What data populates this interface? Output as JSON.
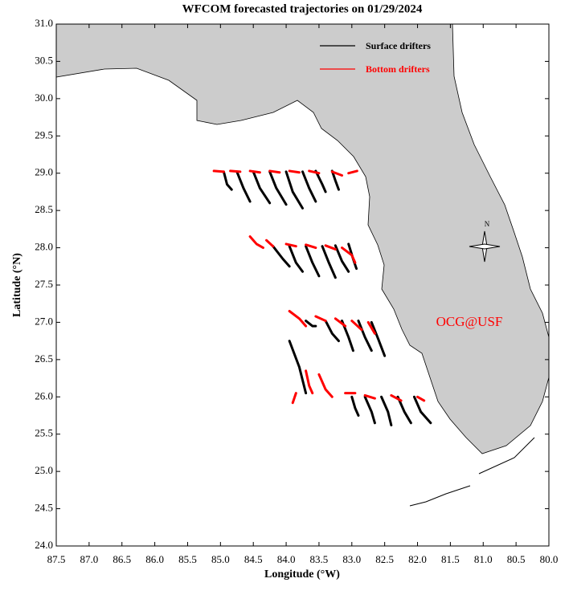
{
  "chart_data": {
    "type": "trajectory",
    "title": "WFCOM forecasted trajectories on 01/29/2024",
    "xlabel": "Longitude (°W)",
    "ylabel": "Latitude (°N)",
    "annotation": "OCG@USF",
    "compass": "N",
    "xlim": [
      87.5,
      80
    ],
    "ylim": [
      24,
      31
    ],
    "xticks": [
      87.5,
      {
        "value": 87,
        "label": "87.0"
      },
      86.5,
      {
        "value": 86,
        "label": "86.0"
      },
      85.5,
      {
        "value": 85,
        "label": "85.0"
      },
      84.5,
      {
        "value": 84,
        "label": "84.0"
      },
      83.5,
      {
        "value": 83,
        "label": "83.0"
      },
      82.5,
      {
        "value": 82,
        "label": "82.0"
      },
      81.5,
      {
        "value": 81,
        "label": "81.0"
      },
      80.5,
      {
        "value": 80,
        "label": "80.0"
      }
    ],
    "yticks": [
      {
        "value": 31,
        "label": "31.0"
      },
      30.5,
      {
        "value": 30,
        "label": "30.0"
      },
      29.5,
      {
        "value": 29,
        "label": "29.0"
      },
      28.5,
      {
        "value": 28,
        "label": "28.0"
      },
      27.5,
      {
        "value": 27,
        "label": "27.0"
      },
      26.5,
      {
        "value": 26,
        "label": "26.0"
      },
      25.5,
      {
        "value": 25,
        "label": "25.0"
      },
      24.5,
      {
        "value": 24,
        "label": "24.0"
      }
    ],
    "series": [
      {
        "name": "Surface drifters",
        "color": "#000000",
        "tracks": [
          {
            "lon": [
              84.95,
              84.9,
              84.83
            ],
            "lat": [
              29.02,
              28.85,
              28.78
            ]
          },
          {
            "lon": [
              84.75,
              84.65,
              84.55
            ],
            "lat": [
              29.02,
              28.8,
              28.62
            ]
          },
          {
            "lon": [
              84.5,
              84.4,
              84.25
            ],
            "lat": [
              29.02,
              28.8,
              28.6
            ]
          },
          {
            "lon": [
              84.25,
              84.15,
              84.0
            ],
            "lat": [
              29.02,
              28.8,
              28.58
            ]
          },
          {
            "lon": [
              84.0,
              83.9,
              83.75
            ],
            "lat": [
              29.02,
              28.75,
              28.53
            ]
          },
          {
            "lon": [
              83.75,
              83.65,
              83.55
            ],
            "lat": [
              29.02,
              28.8,
              28.62
            ]
          },
          {
            "lon": [
              83.55,
              83.45,
              83.4
            ],
            "lat": [
              29.03,
              28.85,
              28.75
            ]
          },
          {
            "lon": [
              83.3,
              83.25,
              83.2
            ],
            "lat": [
              29.03,
              28.9,
              28.78
            ]
          },
          {
            "lon": [
              84.2,
              84.05,
              83.95
            ],
            "lat": [
              28.02,
              27.85,
              27.75
            ]
          },
          {
            "lon": [
              83.95,
              83.85,
              83.75
            ],
            "lat": [
              28.02,
              27.8,
              27.68
            ]
          },
          {
            "lon": [
              83.7,
              83.6,
              83.5
            ],
            "lat": [
              28.02,
              27.8,
              27.62
            ]
          },
          {
            "lon": [
              83.45,
              83.35,
              83.25
            ],
            "lat": [
              28.02,
              27.8,
              27.6
            ]
          },
          {
            "lon": [
              83.25,
              83.15,
              83.05
            ],
            "lat": [
              28.03,
              27.82,
              27.68
            ]
          },
          {
            "lon": [
              83.05,
              82.98,
              82.93
            ],
            "lat": [
              28.05,
              27.85,
              27.72
            ]
          },
          {
            "lon": [
              83.7,
              83.6,
              83.55
            ],
            "lat": [
              27.02,
              26.95,
              26.95
            ]
          },
          {
            "lon": [
              83.4,
              83.3,
              83.2
            ],
            "lat": [
              27.02,
              26.85,
              26.75
            ]
          },
          {
            "lon": [
              83.15,
              83.05,
              82.98
            ],
            "lat": [
              27.02,
              26.8,
              26.62
            ]
          },
          {
            "lon": [
              82.9,
              82.8,
              82.7
            ],
            "lat": [
              27.02,
              26.8,
              26.62
            ]
          },
          {
            "lon": [
              82.7,
              82.6,
              82.5
            ],
            "lat": [
              27.0,
              26.78,
              26.55
            ]
          },
          {
            "lon": [
              83.95,
              83.8,
              83.7
            ],
            "lat": [
              26.75,
              26.4,
              26.05
            ]
          },
          {
            "lon": [
              83.0,
              82.95,
              82.9
            ],
            "lat": [
              26.0,
              25.85,
              25.75
            ]
          },
          {
            "lon": [
              82.8,
              82.7,
              82.65
            ],
            "lat": [
              26.0,
              25.8,
              25.65
            ]
          },
          {
            "lon": [
              82.55,
              82.45,
              82.4
            ],
            "lat": [
              26.0,
              25.8,
              25.62
            ]
          },
          {
            "lon": [
              82.3,
              82.2,
              82.1
            ],
            "lat": [
              26.0,
              25.8,
              25.65
            ]
          },
          {
            "lon": [
              82.05,
              81.95,
              81.8
            ],
            "lat": [
              26.0,
              25.8,
              25.65
            ]
          }
        ]
      },
      {
        "name": "Bottom drifters",
        "color": "#ff0000",
        "tracks": [
          {
            "lon": [
              85.1,
              84.95
            ],
            "lat": [
              29.03,
              29.02
            ]
          },
          {
            "lon": [
              84.85,
              84.7
            ],
            "lat": [
              29.03,
              29.02
            ]
          },
          {
            "lon": [
              84.55,
              84.4
            ],
            "lat": [
              29.03,
              29.01
            ]
          },
          {
            "lon": [
              84.25,
              84.1
            ],
            "lat": [
              29.03,
              29.01
            ]
          },
          {
            "lon": [
              83.95,
              83.8
            ],
            "lat": [
              29.03,
              29.01
            ]
          },
          {
            "lon": [
              83.65,
              83.5
            ],
            "lat": [
              29.03,
              29.0
            ]
          },
          {
            "lon": [
              83.3,
              83.15
            ],
            "lat": [
              29.02,
              28.97
            ]
          },
          {
            "lon": [
              83.05,
              82.92
            ],
            "lat": [
              29.0,
              29.03
            ]
          },
          {
            "lon": [
              84.55,
              84.45,
              84.35
            ],
            "lat": [
              28.15,
              28.05,
              28.0
            ]
          },
          {
            "lon": [
              84.3,
              84.2
            ],
            "lat": [
              28.1,
              28.02
            ]
          },
          {
            "lon": [
              84.0,
              83.85
            ],
            "lat": [
              28.05,
              28.02
            ]
          },
          {
            "lon": [
              83.7,
              83.55
            ],
            "lat": [
              28.04,
              28.0
            ]
          },
          {
            "lon": [
              83.4,
              83.25
            ],
            "lat": [
              28.03,
              27.98
            ]
          },
          {
            "lon": [
              83.15,
              83.0,
              82.95
            ],
            "lat": [
              28.0,
              27.9,
              27.8
            ]
          },
          {
            "lon": [
              83.95,
              83.8,
              83.7
            ],
            "lat": [
              27.15,
              27.05,
              26.95
            ]
          },
          {
            "lon": [
              83.55,
              83.4
            ],
            "lat": [
              27.08,
              27.02
            ]
          },
          {
            "lon": [
              83.25,
              83.1
            ],
            "lat": [
              27.05,
              26.95
            ]
          },
          {
            "lon": [
              83.0,
              82.85
            ],
            "lat": [
              27.02,
              26.9
            ]
          },
          {
            "lon": [
              82.75,
              82.65
            ],
            "lat": [
              27.0,
              26.85
            ]
          },
          {
            "lon": [
              83.9,
              83.85
            ],
            "lat": [
              25.92,
              26.05
            ]
          },
          {
            "lon": [
              83.7,
              83.65,
              83.6
            ],
            "lat": [
              26.35,
              26.15,
              26.05
            ]
          },
          {
            "lon": [
              83.5,
              83.4,
              83.3
            ],
            "lat": [
              26.3,
              26.1,
              26.0
            ]
          },
          {
            "lon": [
              83.1,
              82.95
            ],
            "lat": [
              26.05,
              26.05
            ]
          },
          {
            "lon": [
              82.8,
              82.65
            ],
            "lat": [
              26.02,
              25.98
            ]
          },
          {
            "lon": [
              82.4,
              82.25
            ],
            "lat": [
              26.02,
              25.95
            ]
          },
          {
            "lon": [
              82.0,
              81.9
            ],
            "lat": [
              26.0,
              25.95
            ]
          }
        ]
      }
    ]
  }
}
